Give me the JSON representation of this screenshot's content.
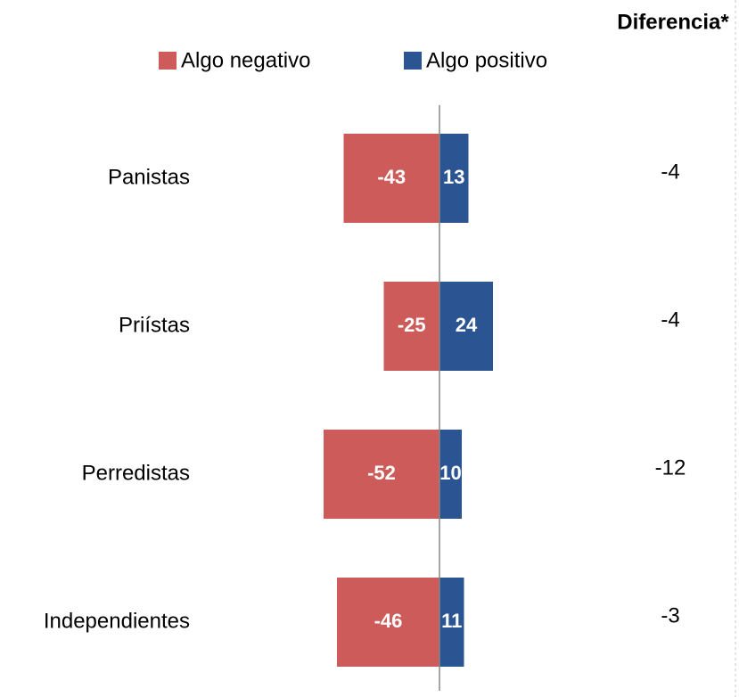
{
  "chart_data": {
    "type": "diverging-bar",
    "categories": [
      "Panistas",
      "Priístas",
      "Perredistas",
      "Independientes"
    ],
    "series": [
      {
        "name": "Algo negativo",
        "color": "#cd5b59",
        "values": [
          -43,
          -25,
          -52,
          -46
        ]
      },
      {
        "name": "Algo positivo",
        "color": "#2b5592",
        "values": [
          13,
          24,
          10,
          11
        ]
      }
    ],
    "difference": {
      "label": "Diferencia*",
      "values": [
        -4,
        -4,
        -12,
        -3
      ]
    }
  }
}
